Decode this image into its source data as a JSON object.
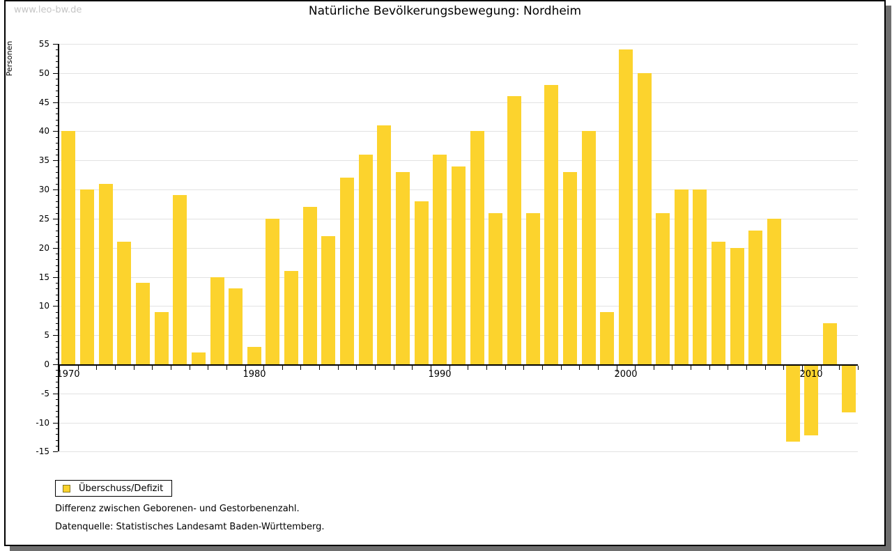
{
  "page": {
    "watermark": "www.leo-bw.de",
    "title": "Natürliche Bevölkerungsbewegung: Nordheim"
  },
  "chart_data": {
    "type": "bar",
    "title": "Natürliche Bevölkerungsbewegung: Nordheim",
    "xlabel": "",
    "ylabel": "Personen",
    "ylim": [
      -15,
      55
    ],
    "ytick_step": 5,
    "ytick_labels": [
      55,
      50,
      45,
      40,
      35,
      30,
      25,
      20,
      15,
      10,
      5,
      0,
      -5,
      -10,
      -15
    ],
    "x_major_ticks": [
      1970,
      1980,
      1990,
      2000,
      2010
    ],
    "grid": true,
    "legend_position": "bottom-left",
    "bar_color": "#fcd32d",
    "series_name": "Überschuss/Defizit",
    "categories": [
      1970,
      1971,
      1972,
      1973,
      1974,
      1975,
      1976,
      1977,
      1978,
      1979,
      1980,
      1981,
      1982,
      1983,
      1984,
      1985,
      1986,
      1987,
      1988,
      1989,
      1990,
      1991,
      1992,
      1993,
      1994,
      1995,
      1996,
      1997,
      1998,
      1999,
      2000,
      2001,
      2002,
      2003,
      2004,
      2005,
      2006,
      2007,
      2008,
      2009,
      2010,
      2011,
      2012
    ],
    "values": [
      40,
      30,
      31,
      21,
      14,
      9,
      29,
      2,
      15,
      13,
      3,
      25,
      16,
      27,
      22,
      32,
      36,
      41,
      33,
      28,
      36,
      34,
      40,
      26,
      46,
      26,
      48,
      33,
      40,
      9,
      54,
      50,
      26,
      30,
      30,
      21,
      20,
      23,
      25,
      -13,
      -12,
      7,
      -8
    ]
  },
  "legend": {
    "label": "Überschuss/Defizit"
  },
  "footer": {
    "line1": "Differenz zwischen Geborenen- und Gestorbenenzahl.",
    "line2": "Datenquelle: Statistisches Landesamt Baden-Württemberg."
  }
}
